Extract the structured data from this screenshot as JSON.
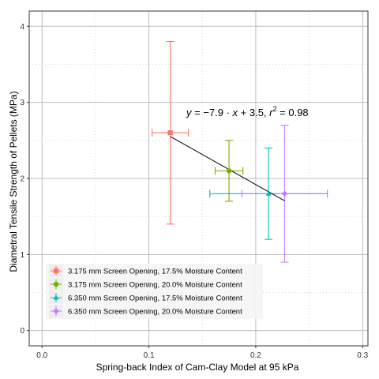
{
  "chart_data": {
    "type": "scatter",
    "xlabel": "Spring-back Index of Cam-Clay Model at 95 kPa",
    "ylabel": "Diametral Tensile Strength of Pellets (MPa)",
    "xlim": [
      -0.012,
      0.305
    ],
    "ylim": [
      -0.2,
      4.2
    ],
    "x_ticks": [
      0.0,
      0.1,
      0.2,
      0.3
    ],
    "x_tick_labels": [
      "0.0",
      "0.1",
      "0.2",
      "0.3"
    ],
    "y_ticks": [
      0,
      1,
      2,
      3,
      4
    ],
    "y_tick_labels": [
      "0",
      "1",
      "2",
      "3",
      "4"
    ],
    "grid": true,
    "legend_position": "bottom-left",
    "series": [
      {
        "name": "3.175 mm Screen Opening, 17.5% Moisture Content",
        "color": "#F8766D",
        "marker": "square",
        "x": 0.12,
        "y": 2.6,
        "x_err": [
          0.103,
          0.137
        ],
        "y_err": [
          1.4,
          3.8
        ]
      },
      {
        "name": "3.175 mm Screen Opening, 20.0% Moisture Content",
        "color": "#7CAE00",
        "marker": "circle",
        "x": 0.175,
        "y": 2.1,
        "x_err": [
          0.162,
          0.188
        ],
        "y_err": [
          1.7,
          2.5
        ]
      },
      {
        "name": "6.350 mm Screen Opening, 17.5% Moisture Content",
        "color": "#00BFC4",
        "marker": "triangle",
        "x": 0.212,
        "y": 1.8,
        "x_err": [
          0.157,
          0.267
        ],
        "y_err": [
          1.2,
          2.4
        ]
      },
      {
        "name": "6.350 mm Screen Opening, 20.0% Moisture Content",
        "color": "#C77CFF",
        "marker": "diamond",
        "x": 0.227,
        "y": 1.8,
        "x_err": [
          0.187,
          0.267
        ],
        "y_err": [
          0.9,
          2.7
        ]
      }
    ],
    "regression": {
      "x_range": [
        0.12,
        0.227
      ],
      "slope": -7.9,
      "intercept": 3.5,
      "annotation": {
        "y": "y",
        "eq": " = −7.9 · ",
        "x": "x",
        "plus": " + 3.5, ",
        "r": "r",
        "sup": "2",
        "r2": " = 0.98"
      }
    }
  }
}
